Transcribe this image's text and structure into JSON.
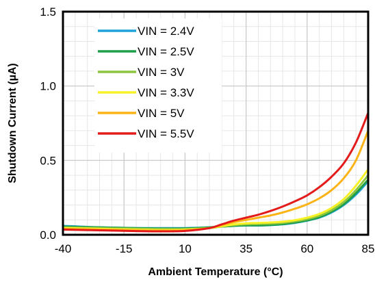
{
  "chart_data": {
    "type": "line",
    "xlabel": "Ambient Temperature (°C)",
    "ylabel": "Shutdown Current (µA)",
    "xlim": [
      -40,
      85
    ],
    "ylim": [
      0,
      1.5
    ],
    "x_ticks": [
      -40,
      -15,
      10,
      35,
      60,
      85
    ],
    "x_tick_labels": [
      "-40",
      "-15",
      "10",
      "35",
      "60",
      "85"
    ],
    "y_ticks": [
      0,
      0.5,
      1.0,
      1.5
    ],
    "y_tick_labels": [
      "0.0",
      "0.5",
      "1.0",
      "1.5"
    ],
    "x_minor_step": 5,
    "y_minor_step": 0.1,
    "grid": true,
    "legend_position": "top-left",
    "series": [
      {
        "name": "VIN = 2.4V",
        "color": "#1fa2dc",
        "x": [
          -40,
          -25,
          -10,
          0,
          10,
          20,
          25,
          30,
          35,
          40,
          45,
          50,
          55,
          60,
          65,
          70,
          75,
          80,
          85
        ],
        "y": [
          0.06,
          0.05,
          0.045,
          0.045,
          0.045,
          0.05,
          0.055,
          0.06,
          0.062,
          0.062,
          0.065,
          0.07,
          0.08,
          0.095,
          0.115,
          0.15,
          0.2,
          0.27,
          0.36
        ]
      },
      {
        "name": "VIN = 2.5V",
        "color": "#1e9e48",
        "x": [
          -40,
          -25,
          -10,
          0,
          10,
          20,
          25,
          30,
          35,
          40,
          45,
          50,
          55,
          60,
          65,
          70,
          75,
          80,
          85
        ],
        "y": [
          0.055,
          0.05,
          0.045,
          0.042,
          0.043,
          0.05,
          0.055,
          0.06,
          0.063,
          0.063,
          0.066,
          0.072,
          0.082,
          0.097,
          0.118,
          0.155,
          0.205,
          0.28,
          0.37
        ]
      },
      {
        "name": "VIN = 3V",
        "color": "#8cc63f",
        "x": [
          -40,
          -25,
          -10,
          0,
          10,
          20,
          25,
          30,
          35,
          40,
          45,
          50,
          55,
          60,
          65,
          70,
          75,
          80,
          85
        ],
        "y": [
          0.05,
          0.045,
          0.04,
          0.038,
          0.038,
          0.045,
          0.055,
          0.065,
          0.07,
          0.072,
          0.075,
          0.08,
          0.09,
          0.105,
          0.128,
          0.165,
          0.22,
          0.3,
          0.4
        ]
      },
      {
        "name": "VIN = 3.3V",
        "color": "#f7f125",
        "x": [
          -40,
          -25,
          -10,
          0,
          10,
          20,
          25,
          30,
          35,
          40,
          45,
          50,
          55,
          60,
          65,
          70,
          75,
          80,
          85
        ],
        "y": [
          0.045,
          0.04,
          0.035,
          0.033,
          0.035,
          0.045,
          0.058,
          0.07,
          0.077,
          0.08,
          0.083,
          0.088,
          0.098,
          0.115,
          0.14,
          0.18,
          0.24,
          0.33,
          0.44
        ]
      },
      {
        "name": "VIN = 5V",
        "color": "#fbb316",
        "x": [
          -40,
          -25,
          -10,
          0,
          10,
          20,
          25,
          30,
          35,
          40,
          45,
          50,
          55,
          60,
          65,
          70,
          75,
          80,
          85
        ],
        "y": [
          0.04,
          0.035,
          0.03,
          0.028,
          0.03,
          0.045,
          0.065,
          0.085,
          0.1,
          0.115,
          0.13,
          0.15,
          0.175,
          0.205,
          0.245,
          0.3,
          0.38,
          0.5,
          0.7
        ]
      },
      {
        "name": "VIN = 5.5V",
        "color": "#e41b1b",
        "x": [
          -40,
          -25,
          -10,
          0,
          10,
          20,
          25,
          30,
          35,
          40,
          45,
          50,
          55,
          60,
          65,
          70,
          75,
          80,
          85
        ],
        "y": [
          0.035,
          0.03,
          0.025,
          0.023,
          0.026,
          0.045,
          0.07,
          0.095,
          0.115,
          0.135,
          0.16,
          0.19,
          0.225,
          0.265,
          0.32,
          0.39,
          0.48,
          0.62,
          0.82
        ]
      }
    ]
  }
}
